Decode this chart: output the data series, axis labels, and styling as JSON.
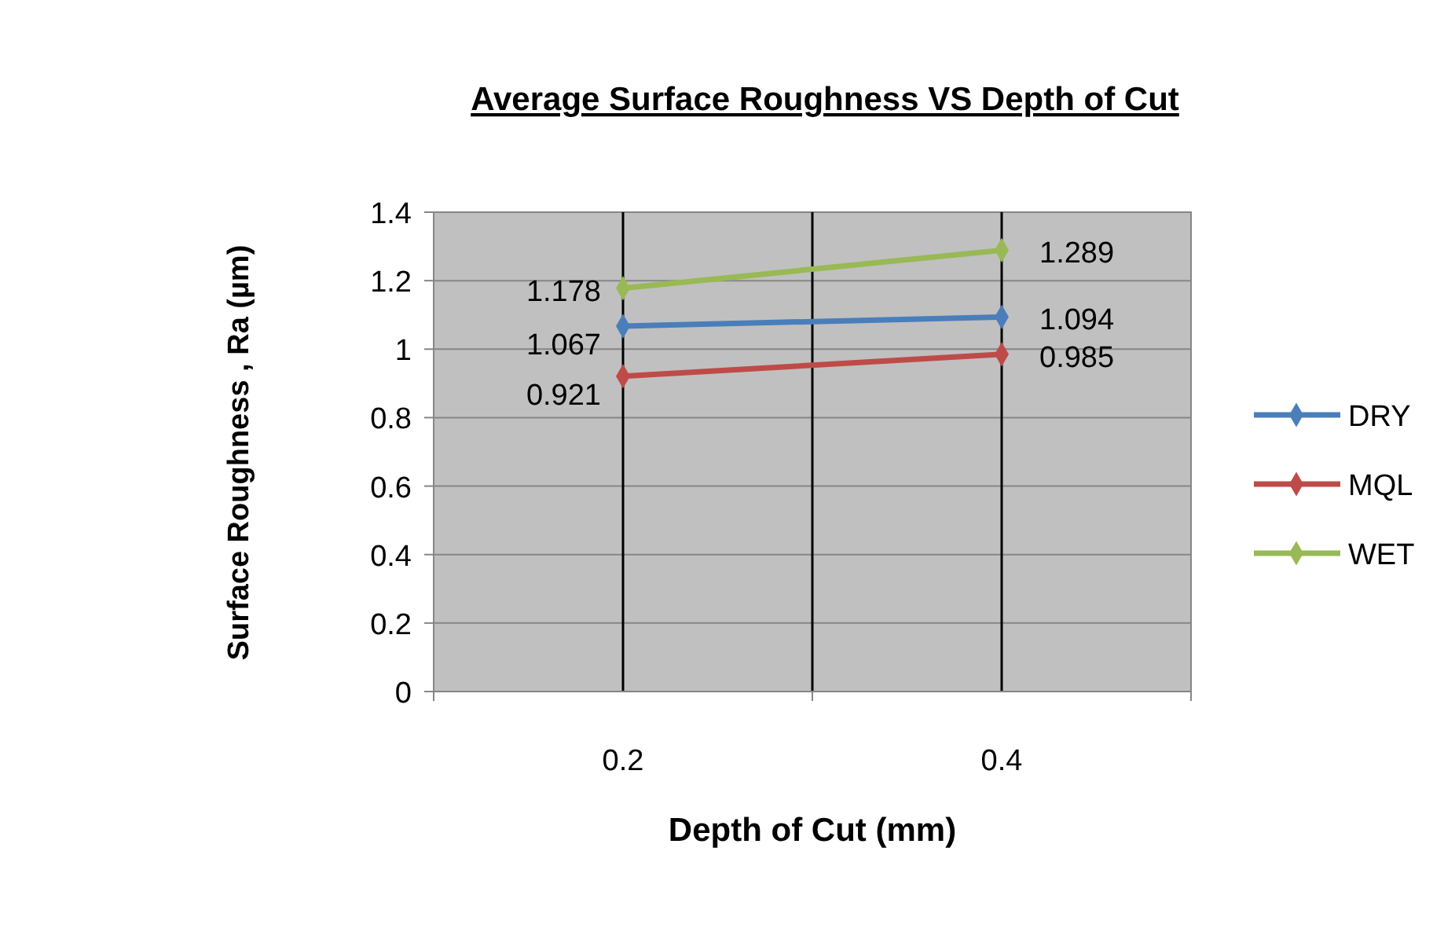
{
  "chart_data": {
    "type": "line",
    "title": "Average Surface Roughness VS Depth of Cut",
    "xlabel": "Depth of Cut (mm)",
    "ylabel": "Surface Roughness , Ra  (µm)",
    "categories": [
      "0.2",
      "0.4"
    ],
    "series": [
      {
        "name": "DRY",
        "color": "#4a7ebb",
        "values": [
          1.067,
          1.094
        ]
      },
      {
        "name": "MQL",
        "color": "#be4b48",
        "values": [
          0.921,
          0.985
        ]
      },
      {
        "name": "WET",
        "color": "#98b954",
        "values": [
          1.178,
          1.289
        ]
      }
    ],
    "ylim": [
      0,
      1.4
    ],
    "yticks": [
      0,
      0.2,
      0.4,
      0.6,
      0.8,
      1,
      1.2,
      1.4
    ],
    "grid": true,
    "legend": "right",
    "marker": "diamond",
    "line_style": "solid",
    "data_labels": true
  }
}
